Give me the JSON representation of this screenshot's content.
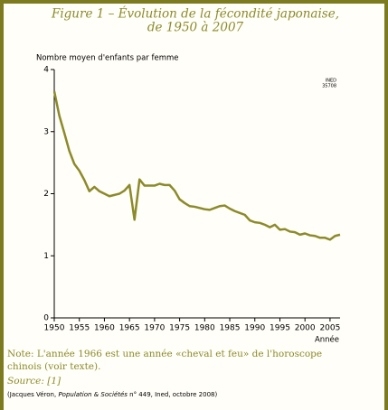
{
  "chart_data": {
    "type": "line",
    "title": [
      "Figure 1 – Évolution de la fécondité japonaise,",
      "de 1950 à 2007"
    ],
    "y_label": "Nombre moyen d'enfants par femme",
    "x_label": "Année",
    "annotation": [
      "INED",
      "35708"
    ],
    "x": [
      1950,
      1951,
      1952,
      1953,
      1954,
      1955,
      1956,
      1957,
      1958,
      1959,
      1960,
      1961,
      1962,
      1963,
      1964,
      1965,
      1966,
      1967,
      1968,
      1969,
      1970,
      1971,
      1972,
      1973,
      1974,
      1975,
      1976,
      1977,
      1978,
      1979,
      1980,
      1981,
      1982,
      1983,
      1984,
      1985,
      1986,
      1987,
      1988,
      1989,
      1990,
      1991,
      1992,
      1993,
      1994,
      1995,
      1996,
      1997,
      1998,
      1999,
      2000,
      2001,
      2002,
      2003,
      2004,
      2005,
      2006,
      2007
    ],
    "series": [
      {
        "color": "#8c8a2a",
        "values": [
          3.65,
          3.26,
          2.98,
          2.69,
          2.48,
          2.37,
          2.22,
          2.04,
          2.11,
          2.04,
          2.0,
          1.96,
          1.98,
          2.0,
          2.05,
          2.14,
          1.58,
          2.23,
          2.13,
          2.13,
          2.13,
          2.16,
          2.14,
          2.14,
          2.05,
          1.91,
          1.85,
          1.8,
          1.79,
          1.77,
          1.75,
          1.74,
          1.77,
          1.8,
          1.81,
          1.76,
          1.72,
          1.69,
          1.66,
          1.57,
          1.54,
          1.53,
          1.5,
          1.46,
          1.5,
          1.42,
          1.43,
          1.39,
          1.38,
          1.34,
          1.36,
          1.33,
          1.32,
          1.29,
          1.29,
          1.26,
          1.32,
          1.34
        ]
      }
    ],
    "xlim": [
      1950,
      2007
    ],
    "ylim": [
      0,
      4
    ],
    "xticks": [
      1950,
      1955,
      1960,
      1965,
      1970,
      1975,
      1980,
      1985,
      1990,
      1995,
      2000,
      2005
    ],
    "yticks": [
      0,
      1,
      2,
      3,
      4
    ],
    "note": [
      "Note: L'année 1966 est une année «cheval et feu» de l'horoscope",
      "chinois (voir texte)."
    ],
    "source": "Source: [1]",
    "citation": [
      "(Jacques Véron, ",
      "Population & Sociétés",
      " n° 449, Ined, octobre 2008)"
    ]
  }
}
